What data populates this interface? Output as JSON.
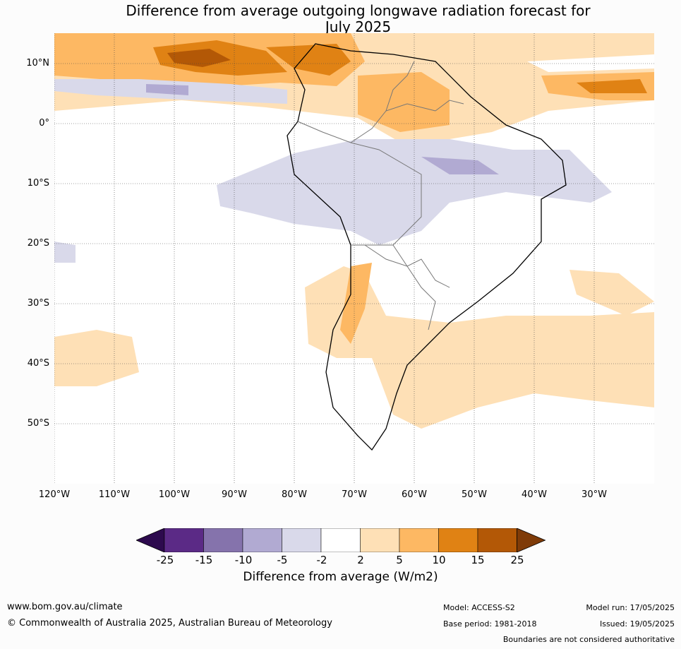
{
  "title_line1": "Difference from average outgoing longwave radiation forecast for",
  "title_line2": "July 2025",
  "lat_labels": [
    "10°N",
    "0°",
    "10°S",
    "20°S",
    "30°S",
    "40°S",
    "50°S"
  ],
  "lon_labels": [
    "120°W",
    "110°W",
    "100°W",
    "90°W",
    "80°W",
    "70°W",
    "60°W",
    "50°W",
    "40°W",
    "30°W"
  ],
  "colorbar": {
    "labels": [
      "-25",
      "-15",
      "-10",
      "-5",
      "-2",
      "2",
      "5",
      "10",
      "15",
      "25"
    ],
    "colors": [
      "#2d0a4e",
      "#5b2a86",
      "#8573ac",
      "#b1aad2",
      "#d9d9ea",
      "#ffffff",
      "#fee0b6",
      "#fdb863",
      "#e08214",
      "#b35806",
      "#7f3b08"
    ],
    "title": "Difference from average (W/m2)"
  },
  "footer": {
    "website": "www.bom.gov.au/climate",
    "copyright": "© Commonwealth of Australia 2025, Australian Bureau of Meteorology",
    "model": "Model: ACCESS-S2",
    "base_period": "Base period: 1981-2018",
    "model_run": "Model run: 17/05/2025",
    "issued": "Issued: 19/05/2025",
    "disclaimer": "Boundaries are not considered authoritative"
  }
}
